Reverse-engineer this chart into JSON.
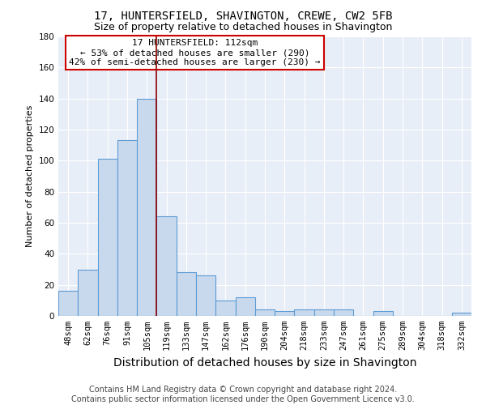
{
  "title": "17, HUNTERSFIELD, SHAVINGTON, CREWE, CW2 5FB",
  "subtitle": "Size of property relative to detached houses in Shavington",
  "xlabel": "Distribution of detached houses by size in Shavington",
  "ylabel": "Number of detached properties",
  "categories": [
    "48sqm",
    "62sqm",
    "76sqm",
    "91sqm",
    "105sqm",
    "119sqm",
    "133sqm",
    "147sqm",
    "162sqm",
    "176sqm",
    "190sqm",
    "204sqm",
    "218sqm",
    "233sqm",
    "247sqm",
    "261sqm",
    "275sqm",
    "289sqm",
    "304sqm",
    "318sqm",
    "332sqm"
  ],
  "values": [
    16,
    30,
    101,
    113,
    140,
    64,
    28,
    26,
    10,
    12,
    4,
    3,
    4,
    4,
    4,
    0,
    3,
    0,
    0,
    0,
    2
  ],
  "bar_color": "#c9d9ed",
  "bar_edge_color": "#5b9bd5",
  "ylim": [
    0,
    180
  ],
  "yticks": [
    0,
    20,
    40,
    60,
    80,
    100,
    120,
    140,
    160,
    180
  ],
  "property_line_x": 4.5,
  "property_line_color": "#8b0000",
  "annotation_text": "17 HUNTERSFIELD: 112sqm\n← 53% of detached houses are smaller (290)\n42% of semi-detached houses are larger (230) →",
  "annotation_box_color": "#ffffff",
  "annotation_box_edge": "#cc0000",
  "footer_text": "Contains HM Land Registry data © Crown copyright and database right 2024.\nContains public sector information licensed under the Open Government Licence v3.0.",
  "fig_background_color": "#ffffff",
  "plot_background_color": "#e8eef7",
  "grid_color": "#ffffff",
  "title_fontsize": 10,
  "subtitle_fontsize": 9,
  "xlabel_fontsize": 10,
  "ylabel_fontsize": 8,
  "tick_fontsize": 7.5,
  "footer_fontsize": 7,
  "annotation_fontsize": 8
}
